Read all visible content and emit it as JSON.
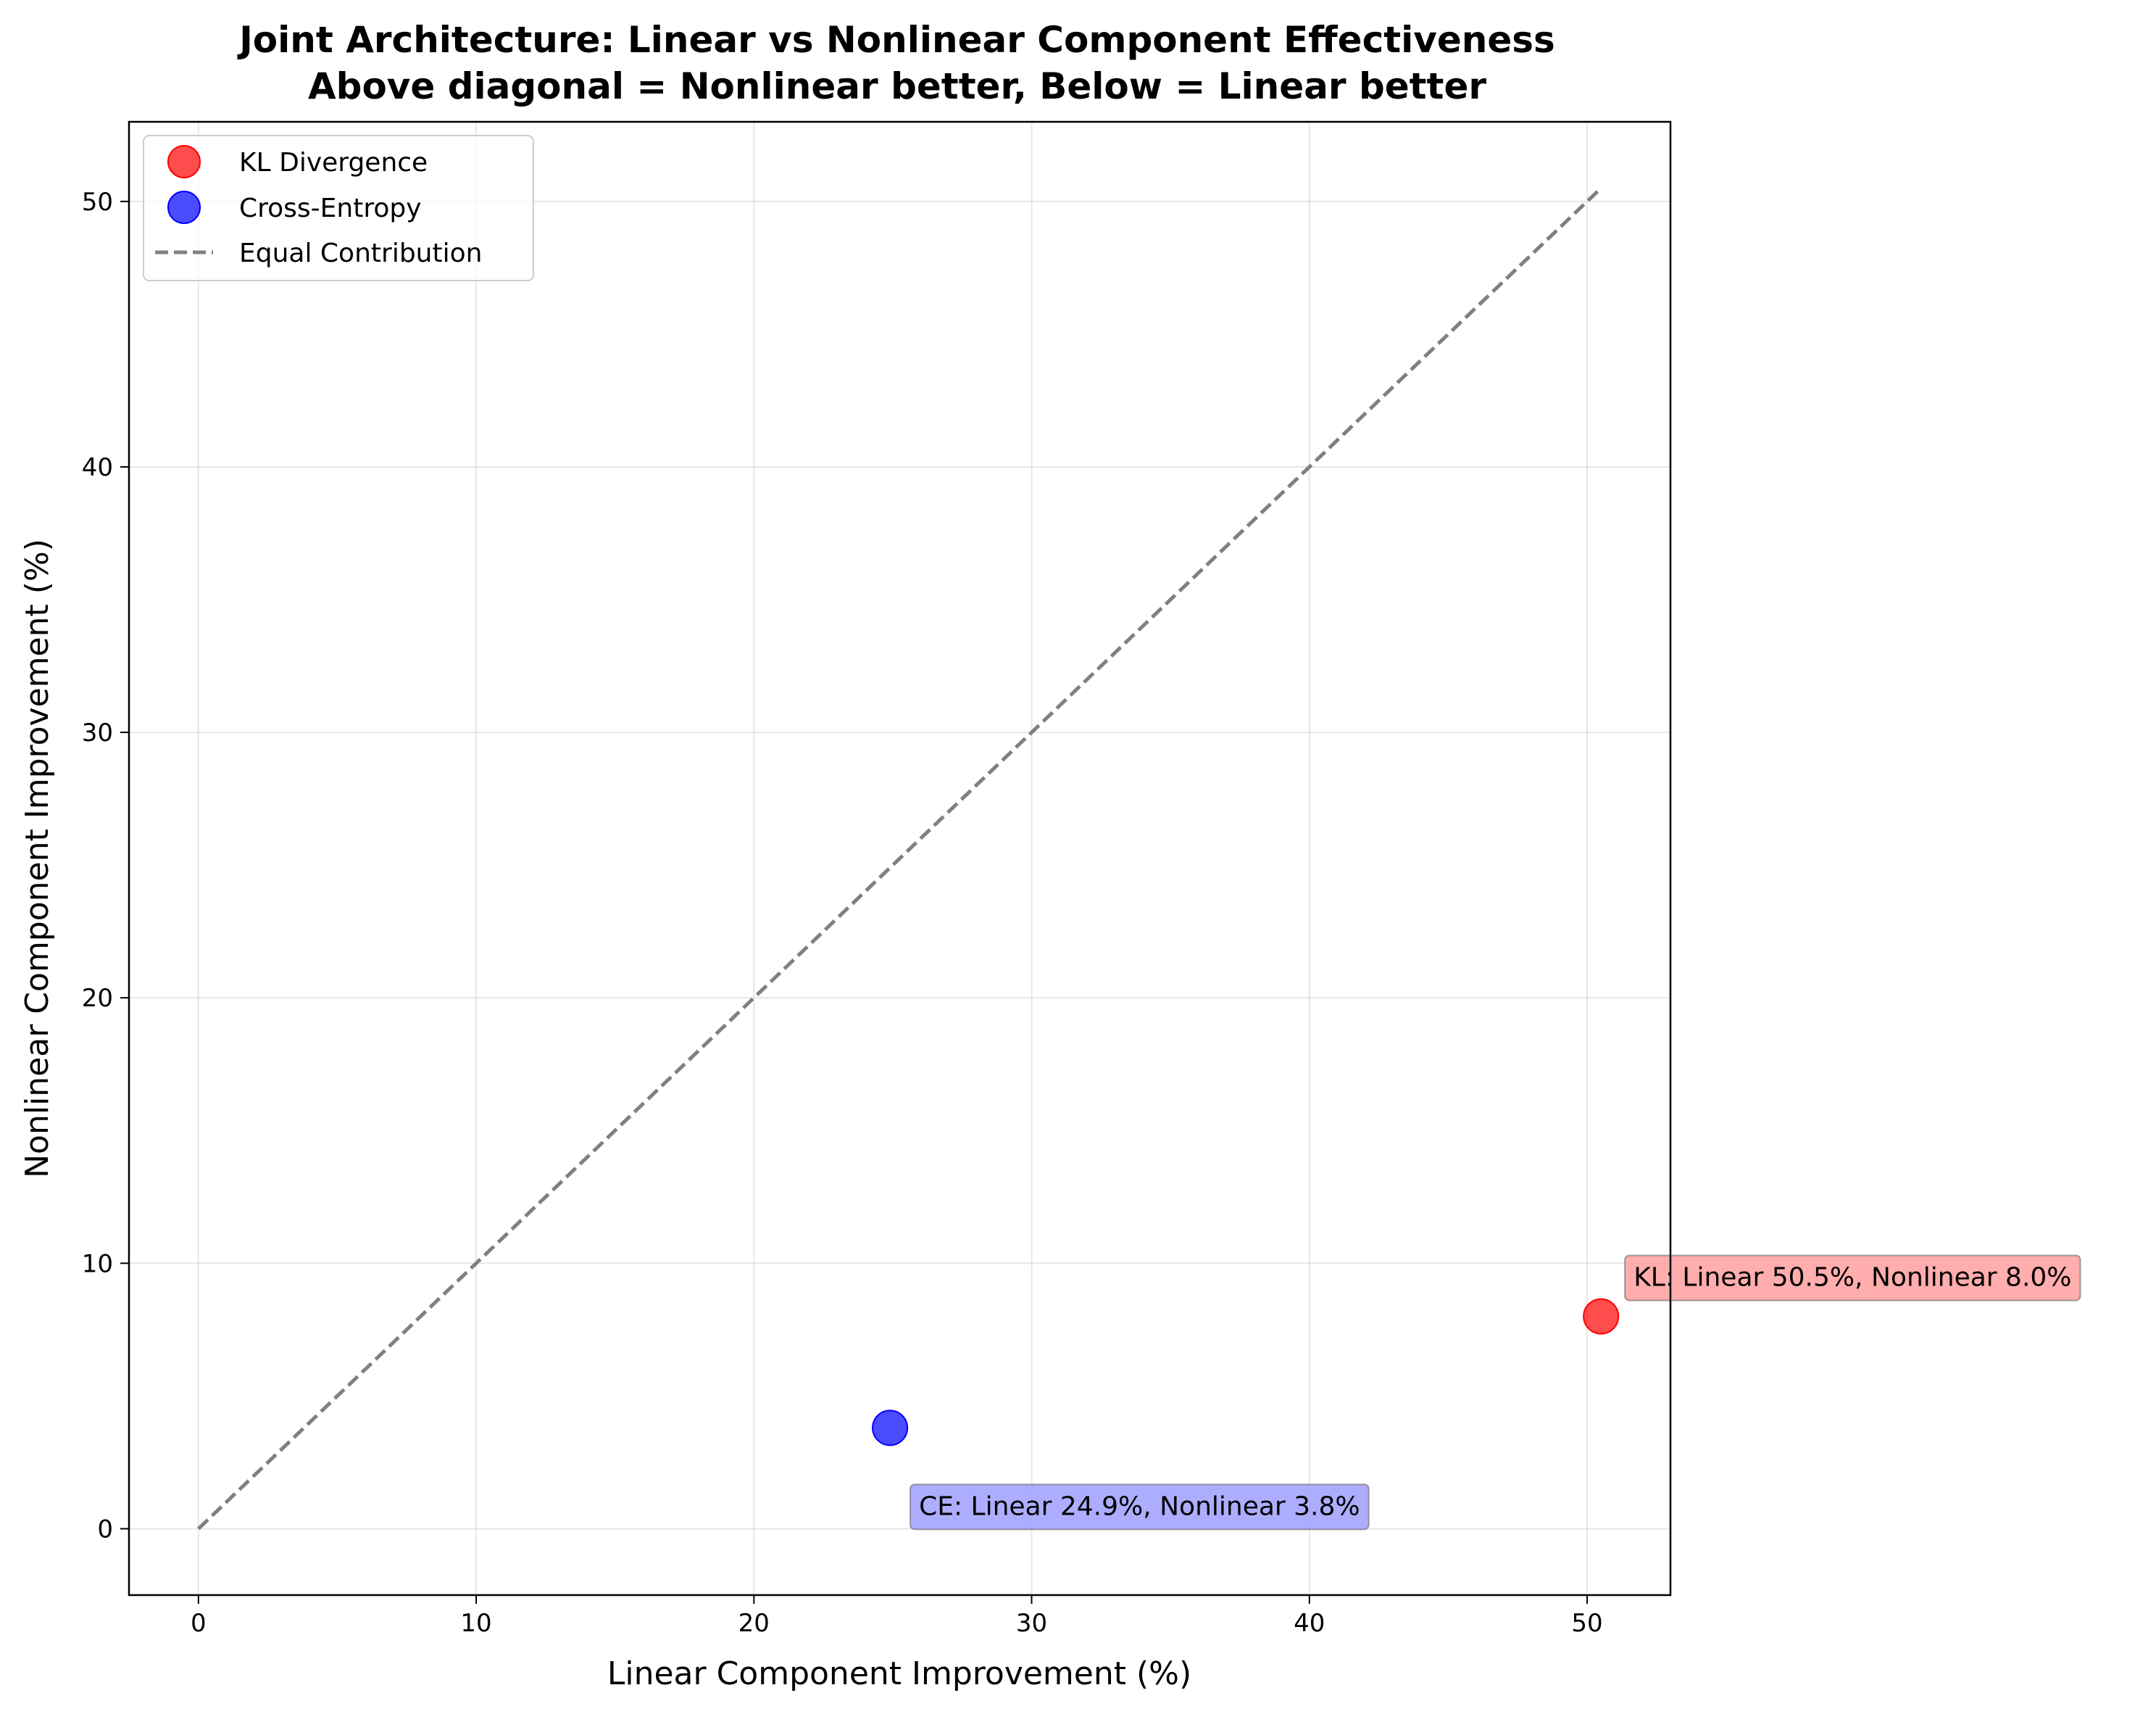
{
  "chart_data": {
    "type": "scatter",
    "title": "Joint Architecture: Linear vs Nonlinear Component Effectiveness",
    "subtitle": "Above diagonal = Nonlinear better, Below = Linear better",
    "xlabel": "Linear Component Improvement (%)",
    "ylabel": "Nonlinear Component Improvement (%)",
    "xlim": [
      -2.5,
      53.0
    ],
    "ylim": [
      -2.5,
      53.0
    ],
    "xticks": [
      0,
      10,
      20,
      30,
      40,
      50
    ],
    "yticks": [
      0,
      10,
      20,
      30,
      40,
      50
    ],
    "grid": true,
    "legend_position": "top-left",
    "series": [
      {
        "name": "KL Divergence",
        "color": "#ff0000",
        "points": [
          {
            "x": 50.5,
            "y": 8.0
          }
        ],
        "annotation": "KL: Linear 50.5%, Nonlinear 8.0%",
        "annotation_bg": "#ff9999"
      },
      {
        "name": "Cross-Entropy",
        "color": "#0000ff",
        "points": [
          {
            "x": 24.9,
            "y": 3.8
          }
        ],
        "annotation": "CE: Linear 24.9%, Nonlinear 3.8%",
        "annotation_bg": "#9999ff"
      }
    ],
    "reference_line": {
      "name": "Equal Contribution",
      "from": [
        0,
        0
      ],
      "to": [
        50.5,
        50.5
      ],
      "color": "#808080",
      "style": "dashed"
    }
  }
}
